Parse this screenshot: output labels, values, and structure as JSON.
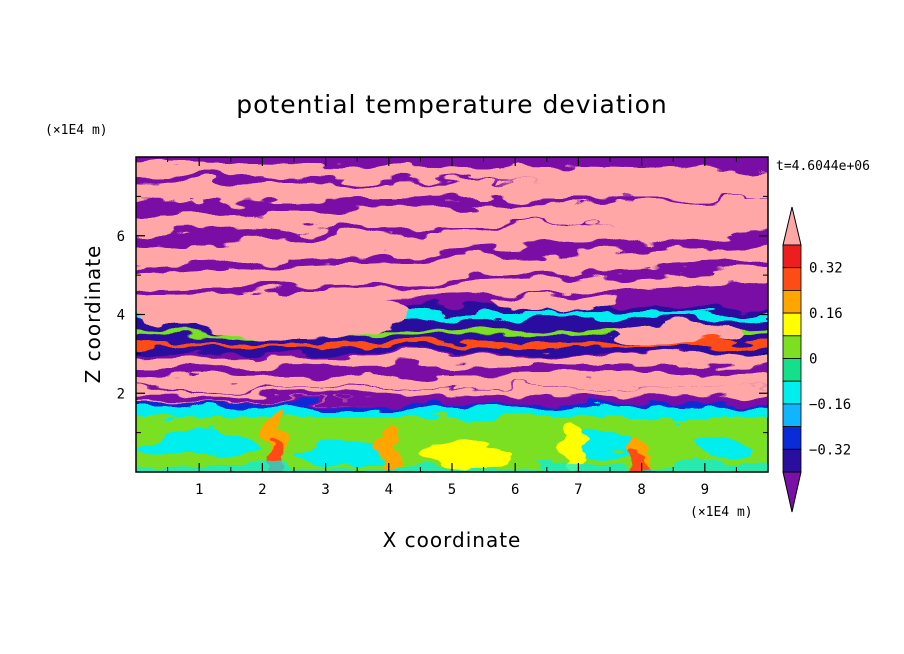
{
  "chart_data": {
    "type": "heatmap",
    "title": "potential temperature deviation",
    "xlabel": "X coordinate",
    "ylabel": "Z coordinate",
    "x_unit": "(×1E4 m)",
    "y_unit": "(×1E4 m)",
    "time_label": "t=4.6044e+06",
    "xlim": [
      0,
      10
    ],
    "ylim": [
      0,
      8
    ],
    "x_ticks": [
      "1",
      "2",
      "3",
      "4",
      "5",
      "6",
      "7",
      "8",
      "9"
    ],
    "y_ticks": [
      "2",
      "4",
      "6"
    ],
    "colorbar": {
      "labels": [
        "0.32",
        "0.16",
        "0",
        "−0.16",
        "−0.32"
      ],
      "levels": [
        -0.4,
        -0.32,
        -0.24,
        -0.16,
        -0.08,
        0,
        0.08,
        0.16,
        0.24,
        0.32,
        0.4
      ],
      "colors": [
        "#7a10a6",
        "#2a0f9e",
        "#0a2bd8",
        "#10b4ff",
        "#00eeee",
        "#14e08c",
        "#7ce020",
        "#ffff00",
        "#ffa500",
        "#ff4b14",
        "#ee1e1e",
        "#ffa7a7"
      ]
    },
    "field_description_layers": [
      {
        "z_range": [
          0,
          1.5
        ],
        "dominant": "green/cyan with warm plumes near x=2.2, 4.0, 6.9, 8.0"
      },
      {
        "z_range": [
          1.5,
          5
        ],
        "dominant": "alternating purple and pink bands with turbulent mixing"
      },
      {
        "z_range": [
          5,
          8
        ],
        "dominant": "alternating purple and pink slanted bands"
      }
    ]
  }
}
